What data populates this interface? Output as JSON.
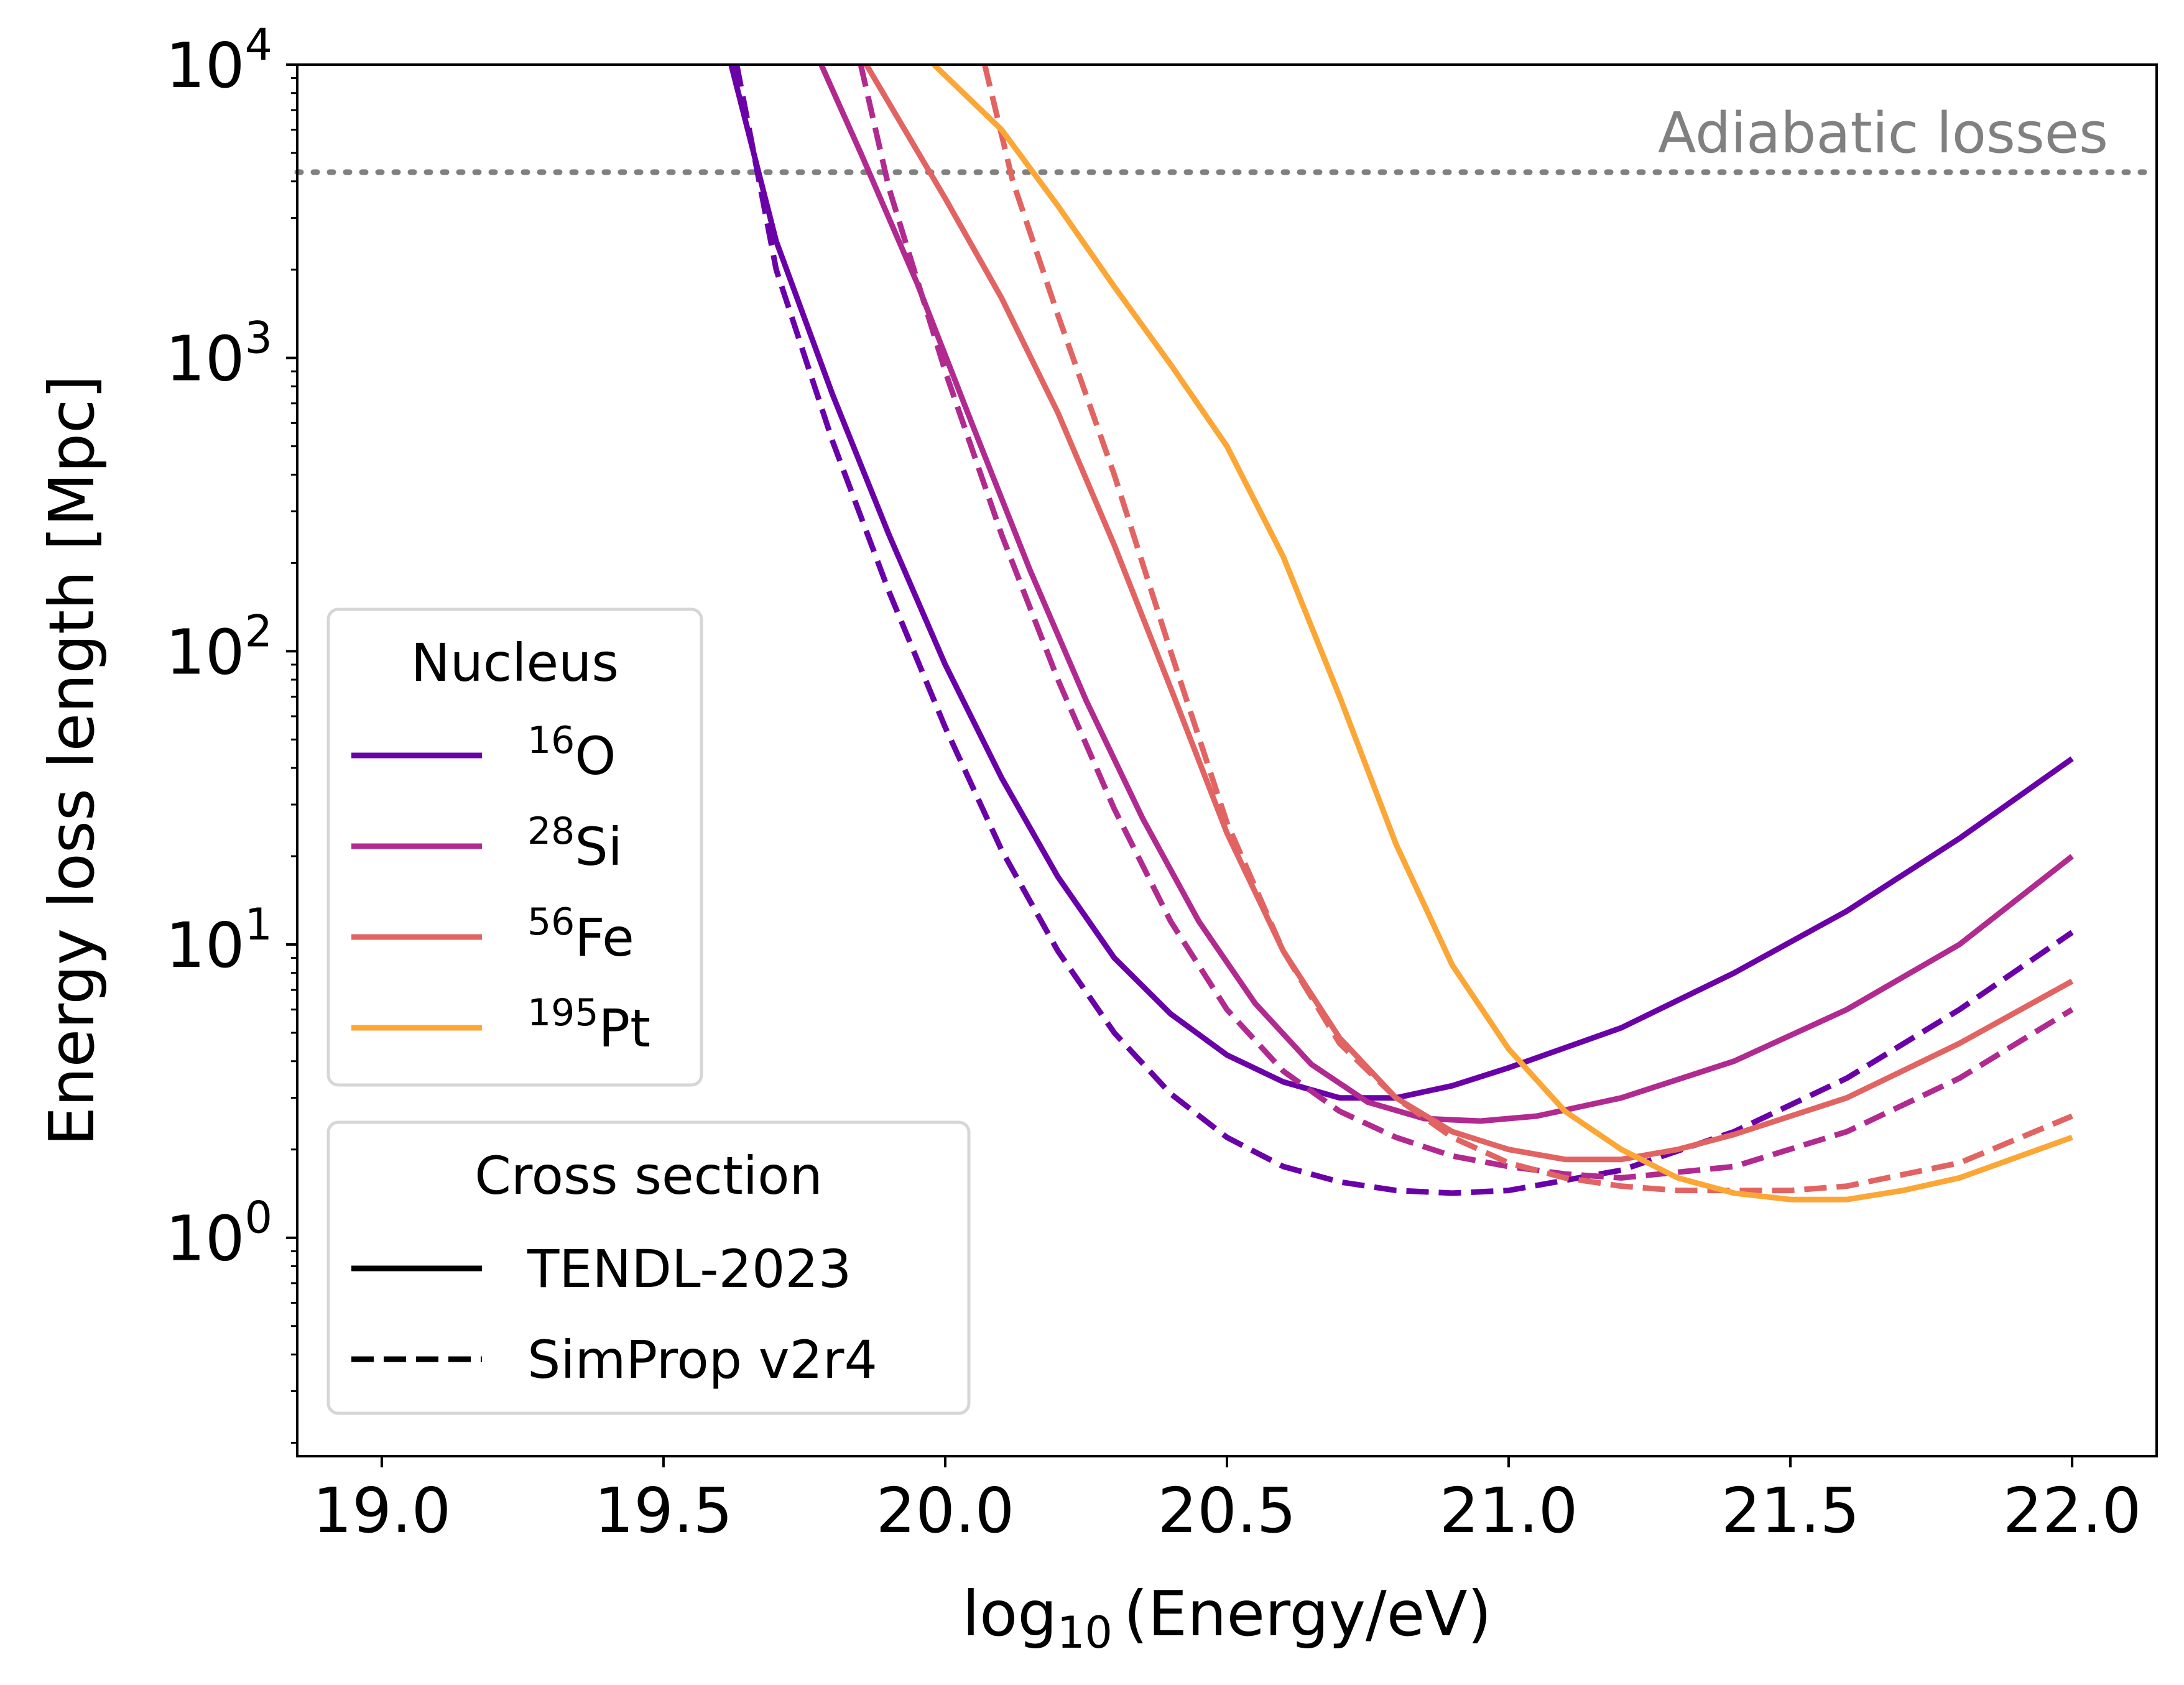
{
  "chart_data": {
    "type": "line",
    "xlabel": {
      "main": "log",
      "sub": "10",
      "rest": "(Energy/eV)"
    },
    "ylabel": "Energy loss length [Mpc]",
    "xlim": [
      18.85,
      22.15
    ],
    "ylim": [
      0.18,
      10000
    ],
    "y_scale": "log",
    "x_ticks": [
      "19.0",
      "19.5",
      "20.0",
      "20.5",
      "21.0",
      "21.5",
      "22.0"
    ],
    "y_ticks": [
      {
        "base": "10",
        "exp": "0"
      },
      {
        "base": "10",
        "exp": "1"
      },
      {
        "base": "10",
        "exp": "2"
      },
      {
        "base": "10",
        "exp": "3"
      },
      {
        "base": "10",
        "exp": "4"
      }
    ],
    "grid": false,
    "adiabatic": {
      "label": "Adiabatic losses",
      "y": 4300,
      "color": "#808080"
    },
    "legend_nucleus": {
      "title": "Nucleus",
      "placement": "center-left",
      "entries": [
        {
          "sup": "16",
          "text": "O",
          "color": "#6a00a8"
        },
        {
          "sup": "28",
          "text": "Si",
          "color": "#b12a90"
        },
        {
          "sup": "56",
          "text": "Fe",
          "color": "#e16462"
        },
        {
          "sup": "195",
          "text": "Pt",
          "color": "#fca636"
        }
      ]
    },
    "legend_cross": {
      "title": "Cross section",
      "placement": "lower-left",
      "entries": [
        {
          "text": "TENDL-2023",
          "style": "solid"
        },
        {
          "text": "SimProp v2r4",
          "style": "dashed"
        }
      ]
    },
    "series": [
      {
        "name": "O",
        "nucleus": "16O",
        "cross_section": "TENDL-2023",
        "style": "solid",
        "color": "#6a00a8",
        "x": [
          19.62,
          19.7,
          19.8,
          19.9,
          20.0,
          20.1,
          20.2,
          20.3,
          20.4,
          20.5,
          20.6,
          20.7,
          20.8,
          20.9,
          21.0,
          21.2,
          21.4,
          21.6,
          21.8,
          22.0
        ],
        "y": [
          10000,
          2500,
          750,
          250,
          90,
          37,
          17,
          9,
          5.8,
          4.2,
          3.4,
          3.0,
          3.0,
          3.3,
          3.8,
          5.2,
          8.0,
          13,
          23,
          43
        ]
      },
      {
        "name": "O",
        "nucleus": "16O",
        "cross_section": "SimProp v2r4",
        "style": "dashed",
        "color": "#6a00a8",
        "x": [
          19.63,
          19.7,
          19.8,
          19.9,
          20.0,
          20.1,
          20.2,
          20.3,
          20.4,
          20.5,
          20.6,
          20.7,
          20.8,
          20.9,
          21.0,
          21.2,
          21.4,
          21.6,
          21.8,
          22.0
        ],
        "y": [
          10000,
          2000,
          520,
          160,
          55,
          21,
          9.5,
          5.0,
          3.1,
          2.2,
          1.75,
          1.55,
          1.45,
          1.42,
          1.45,
          1.7,
          2.3,
          3.5,
          6.0,
          11
        ]
      },
      {
        "name": "Si",
        "nucleus": "28Si",
        "cross_section": "TENDL-2023",
        "style": "solid",
        "color": "#b12a90",
        "x": [
          19.78,
          19.85,
          19.95,
          20.05,
          20.15,
          20.25,
          20.35,
          20.45,
          20.55,
          20.65,
          20.75,
          20.85,
          20.95,
          21.05,
          21.2,
          21.4,
          21.6,
          21.8,
          22.0
        ],
        "y": [
          10000,
          5000,
          1800,
          580,
          190,
          68,
          27,
          12,
          6.3,
          3.9,
          2.9,
          2.55,
          2.5,
          2.6,
          3.0,
          4.0,
          6.0,
          10,
          20
        ]
      },
      {
        "name": "Si",
        "nucleus": "28Si",
        "cross_section": "SimProp v2r4",
        "style": "dashed",
        "color": "#b12a90",
        "x": [
          19.85,
          19.9,
          20.0,
          20.1,
          20.2,
          20.3,
          20.4,
          20.5,
          20.6,
          20.7,
          20.8,
          20.9,
          21.0,
          21.1,
          21.2,
          21.4,
          21.6,
          21.8,
          22.0
        ],
        "y": [
          10000,
          3800,
          900,
          250,
          80,
          29,
          12,
          6.0,
          3.7,
          2.7,
          2.2,
          1.9,
          1.75,
          1.65,
          1.6,
          1.75,
          2.3,
          3.5,
          6.0
        ]
      },
      {
        "name": "Fe",
        "nucleus": "56Fe",
        "cross_section": "TENDL-2023",
        "style": "solid",
        "color": "#e16462",
        "x": [
          19.86,
          20.0,
          20.1,
          20.2,
          20.3,
          20.4,
          20.5,
          20.6,
          20.7,
          20.8,
          20.9,
          21.0,
          21.1,
          21.2,
          21.3,
          21.4,
          21.6,
          21.8,
          22.0
        ],
        "y": [
          10000,
          3500,
          1600,
          650,
          230,
          75,
          24,
          9.5,
          4.8,
          3.0,
          2.3,
          2.0,
          1.85,
          1.85,
          2.0,
          2.25,
          3.0,
          4.6,
          7.5
        ]
      },
      {
        "name": "Fe",
        "nucleus": "56Fe",
        "cross_section": "SimProp v2r4",
        "style": "dashed",
        "color": "#e16462",
        "x": [
          20.07,
          20.12,
          20.2,
          20.3,
          20.4,
          20.5,
          20.6,
          20.7,
          20.8,
          20.9,
          21.0,
          21.1,
          21.2,
          21.3,
          21.4,
          21.5,
          21.6,
          21.8,
          22.0
        ],
        "y": [
          10000,
          4000,
          1400,
          400,
          100,
          26,
          9.5,
          4.6,
          3.0,
          2.2,
          1.8,
          1.6,
          1.5,
          1.45,
          1.45,
          1.45,
          1.5,
          1.8,
          2.6
        ]
      },
      {
        "name": "Pt",
        "nucleus": "195Pt",
        "cross_section": "TENDL-2023",
        "style": "solid",
        "color": "#fca636",
        "x": [
          19.98,
          20.1,
          20.2,
          20.3,
          20.4,
          20.5,
          20.6,
          20.7,
          20.8,
          20.9,
          21.0,
          21.1,
          21.2,
          21.3,
          21.4,
          21.5,
          21.6,
          21.7,
          21.8,
          22.0
        ],
        "y": [
          10000,
          6000,
          3300,
          1750,
          950,
          500,
          210,
          70,
          22,
          8.5,
          4.4,
          2.7,
          2.0,
          1.6,
          1.42,
          1.35,
          1.35,
          1.45,
          1.6,
          2.2
        ]
      }
    ]
  }
}
